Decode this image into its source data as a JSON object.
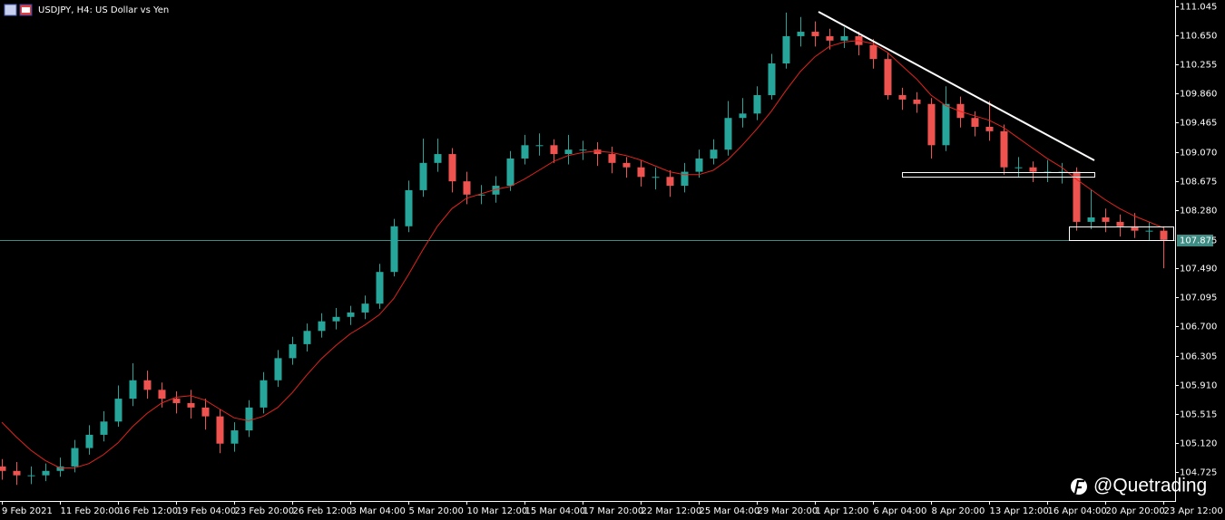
{
  "chart_data": {
    "type": "candlestick",
    "title": "USDJPY, H4:  US Dollar vs Yen",
    "categories": [
      "9 Feb 2021",
      null,
      null,
      null,
      "11 Feb 20:00",
      null,
      null,
      null,
      "16 Feb 12:00",
      null,
      null,
      null,
      "19 Feb 04:00",
      null,
      null,
      null,
      "23 Feb 20:00",
      null,
      null,
      null,
      "26 Feb 12:00",
      null,
      null,
      null,
      "3 Mar 04:00",
      null,
      null,
      null,
      "5 Mar 20:00",
      null,
      null,
      null,
      "10 Mar 12:00",
      null,
      null,
      null,
      "15 Mar 04:00",
      null,
      null,
      null,
      "17 Mar 20:00",
      null,
      null,
      null,
      "22 Mar 12:00",
      null,
      null,
      null,
      "25 Mar 04:00",
      null,
      null,
      null,
      "29 Mar 20:00",
      null,
      null,
      null,
      "1 Apr 12:00",
      null,
      null,
      null,
      "6 Apr 04:00",
      null,
      null,
      null,
      "8 Apr 20:00",
      null,
      null,
      null,
      "13 Apr 12:00",
      null,
      null,
      null,
      "16 Apr 04:00",
      null,
      null,
      null,
      "20 Apr 20:00",
      null,
      null,
      null,
      "23 Apr 12:00"
    ],
    "open": [
      104.8,
      104.74,
      104.68,
      104.68,
      104.74,
      104.8,
      105.05,
      105.23,
      105.41,
      105.72,
      105.97,
      105.84,
      105.72,
      105.66,
      105.6,
      105.48,
      105.11,
      105.29,
      105.6,
      105.97,
      106.27,
      106.46,
      106.64,
      106.77,
      106.83,
      106.89,
      107.01,
      107.44,
      108.06,
      108.55,
      108.92,
      109.04,
      108.67,
      108.49,
      108.49,
      108.61,
      108.98,
      109.16,
      109.16,
      109.04,
      109.1,
      109.1,
      109.04,
      108.92,
      108.86,
      108.73,
      108.73,
      108.61,
      108.8,
      108.98,
      109.1,
      109.53,
      109.59,
      109.84,
      110.27,
      110.64,
      110.7,
      110.64,
      110.58,
      110.64,
      110.52,
      110.33,
      109.84,
      109.78,
      109.72,
      109.16,
      109.72,
      109.53,
      109.41,
      109.35,
      108.86,
      108.86,
      108.8,
      108.8,
      108.8,
      108.12,
      108.18,
      108.12,
      108.06,
      108.0,
      108.0
    ],
    "high": [
      104.9,
      104.86,
      104.8,
      104.84,
      104.92,
      105.16,
      105.36,
      105.55,
      105.9,
      106.2,
      106.1,
      105.94,
      105.82,
      105.84,
      105.72,
      105.58,
      105.4,
      105.7,
      106.08,
      106.38,
      106.56,
      106.74,
      106.88,
      106.95,
      106.98,
      107.12,
      107.55,
      108.16,
      108.68,
      109.25,
      109.25,
      109.12,
      108.8,
      108.62,
      108.74,
      109.08,
      109.3,
      109.32,
      109.24,
      109.3,
      109.22,
      109.2,
      109.14,
      109.0,
      108.96,
      108.86,
      108.82,
      108.92,
      109.1,
      109.24,
      109.76,
      109.8,
      109.96,
      110.4,
      110.96,
      110.9,
      110.84,
      110.74,
      110.76,
      110.7,
      110.6,
      110.42,
      109.94,
      109.88,
      109.8,
      109.96,
      109.82,
      109.62,
      109.76,
      109.44,
      109.0,
      108.94,
      108.96,
      108.92,
      108.86,
      108.56,
      108.3,
      108.22,
      108.24,
      108.12,
      108.06
    ],
    "low": [
      104.62,
      104.55,
      104.56,
      104.6,
      104.66,
      104.72,
      104.96,
      105.14,
      105.34,
      105.62,
      105.72,
      105.6,
      105.52,
      105.45,
      105.3,
      104.98,
      105.0,
      105.2,
      105.52,
      105.88,
      106.18,
      106.36,
      106.55,
      106.66,
      106.72,
      106.8,
      106.94,
      107.38,
      107.98,
      108.46,
      108.8,
      108.52,
      108.36,
      108.36,
      108.38,
      108.54,
      108.9,
      109.02,
      108.92,
      108.9,
      108.96,
      108.88,
      108.78,
      108.72,
      108.6,
      108.56,
      108.46,
      108.52,
      108.72,
      108.9,
      109.02,
      109.4,
      109.5,
      109.78,
      110.2,
      110.5,
      110.5,
      110.46,
      110.48,
      110.38,
      110.2,
      109.78,
      109.64,
      109.6,
      108.98,
      109.08,
      109.4,
      109.28,
      109.22,
      108.76,
      108.72,
      108.66,
      108.66,
      108.64,
      108.0,
      108.02,
      107.98,
      107.92,
      107.9,
      107.86,
      107.49
    ],
    "close": [
      104.74,
      104.68,
      104.68,
      104.74,
      104.8,
      105.05,
      105.23,
      105.41,
      105.72,
      105.97,
      105.84,
      105.72,
      105.66,
      105.6,
      105.48,
      105.11,
      105.29,
      105.6,
      105.97,
      106.27,
      106.46,
      106.64,
      106.77,
      106.83,
      106.89,
      107.01,
      107.44,
      108.06,
      108.55,
      108.92,
      109.04,
      108.67,
      108.49,
      108.49,
      108.61,
      108.98,
      109.16,
      109.16,
      109.04,
      109.1,
      109.1,
      109.04,
      108.92,
      108.86,
      108.73,
      108.73,
      108.61,
      108.8,
      108.98,
      109.1,
      109.53,
      109.59,
      109.84,
      110.27,
      110.64,
      110.7,
      110.64,
      110.58,
      110.64,
      110.52,
      110.33,
      109.84,
      109.78,
      109.72,
      109.16,
      109.72,
      109.53,
      109.41,
      109.35,
      108.86,
      108.86,
      108.8,
      108.8,
      108.8,
      108.12,
      108.18,
      108.12,
      108.06,
      108.0,
      108.0,
      107.875
    ],
    "ma": [
      105.4,
      105.2,
      105.02,
      104.88,
      104.78,
      104.78,
      104.84,
      104.96,
      105.12,
      105.34,
      105.52,
      105.66,
      105.74,
      105.76,
      105.7,
      105.58,
      105.46,
      105.42,
      105.48,
      105.6,
      105.8,
      106.04,
      106.26,
      106.44,
      106.6,
      106.72,
      106.86,
      107.08,
      107.4,
      107.74,
      108.06,
      108.3,
      108.44,
      108.5,
      108.56,
      108.6,
      108.7,
      108.82,
      108.94,
      109.02,
      109.06,
      109.08,
      109.06,
      109.02,
      108.96,
      108.88,
      108.8,
      108.76,
      108.76,
      108.82,
      108.96,
      109.16,
      109.38,
      109.62,
      109.9,
      110.16,
      110.36,
      110.5,
      110.56,
      110.58,
      110.54,
      110.42,
      110.24,
      110.06,
      109.84,
      109.7,
      109.62,
      109.56,
      109.5,
      109.4,
      109.26,
      109.12,
      108.98,
      108.86,
      108.7,
      108.56,
      108.42,
      108.3,
      108.2,
      108.12,
      108.04
    ],
    "bull_color": "#26a69a",
    "bear_color": "#ef5350",
    "ma_color": "#e0241c",
    "current_price": 107.875,
    "price_line_color": "#3e8c84",
    "ylim": [
      104.344,
      111.131
    ],
    "yticks": [
      111.045,
      {
        "value": 110.65,
        "label": "110.650"
      },
      110.255,
      {
        "value": 109.86,
        "label": "109.860"
      },
      109.465,
      {
        "value": 109.07,
        "label": "109.070"
      },
      108.675,
      {
        "value": 108.28,
        "label": "108.280"
      },
      {
        "value": 107.49,
        "label": "107.490"
      },
      107.095,
      {
        "value": 106.7,
        "label": "106.700"
      },
      106.305,
      {
        "value": 105.91,
        "label": "105.910"
      },
      105.515,
      {
        "value": 105.12,
        "label": "105.120"
      },
      104.725
    ]
  },
  "watermark": "@Quetrading"
}
